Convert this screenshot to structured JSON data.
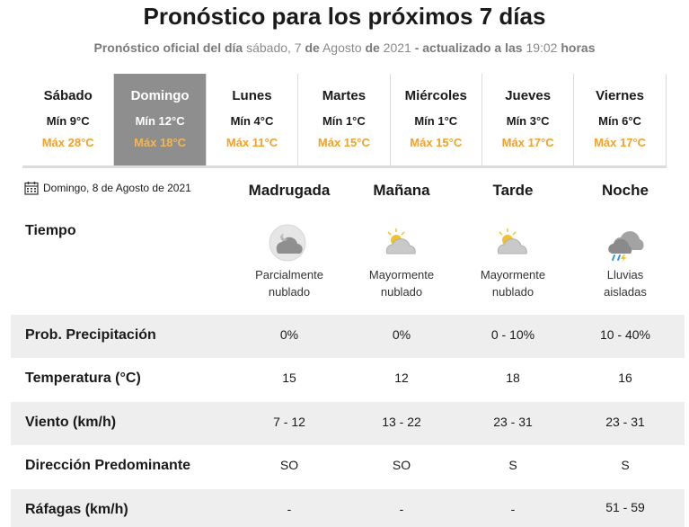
{
  "header": {
    "title": "Pronóstico para los próximos 7 días",
    "subtitle_part1": "Pronóstico oficial del día",
    "subtitle_date1": "sábado, 7",
    "subtitle_de1": "de",
    "subtitle_month": "Agosto",
    "subtitle_de2": "de",
    "subtitle_year": "2021",
    "subtitle_part2": "- actualizado a las",
    "subtitle_time": "19:02",
    "subtitle_hours": "horas"
  },
  "days": [
    {
      "name": "Sábado",
      "min": "Mín 9°C",
      "max": "Máx 28°C"
    },
    {
      "name": "Domingo",
      "min": "Mín 12°C",
      "max": "Máx 18°C"
    },
    {
      "name": "Lunes",
      "min": "Mín 4°C",
      "max": "Máx 11°C"
    },
    {
      "name": "Martes",
      "min": "Mín 1°C",
      "max": "Máx 15°C"
    },
    {
      "name": "Miércoles",
      "min": "Mín 1°C",
      "max": "Máx 15°C"
    },
    {
      "name": "Jueves",
      "min": "Mín 3°C",
      "max": "Máx 17°C"
    },
    {
      "name": "Viernes",
      "min": "Mín 6°C",
      "max": "Máx 17°C"
    }
  ],
  "active_day": "Domingo",
  "detail": {
    "date": "Domingo, 8 de Agosto de 2021",
    "calendar_icon": "calendar-icon",
    "periods": [
      "Madrugada",
      "Mañana",
      "Tarde",
      "Noche"
    ],
    "tiempo_label": "Tiempo",
    "weather": [
      {
        "line1": "Parcialmente",
        "line2": "nublado",
        "icon": "partly-cloudy-night-icon"
      },
      {
        "line1": "Mayormente",
        "line2": "nublado",
        "icon": "mostly-cloudy-day-icon"
      },
      {
        "line1": "Mayormente",
        "line2": "nublado",
        "icon": "mostly-cloudy-day-icon"
      },
      {
        "line1": "Lluvias",
        "line2": "aisladas",
        "icon": "isolated-showers-icon"
      }
    ],
    "rows": [
      {
        "label": "Prob. Precipitación",
        "values": [
          "0%",
          "0%",
          "0 - 10%",
          "10 - 40%"
        ]
      },
      {
        "label": "Temperatura (°C)",
        "values": [
          "15",
          "12",
          "18",
          "16"
        ]
      },
      {
        "label": "Viento (km/h)",
        "values": [
          "7 - 12",
          "13 - 22",
          "23 - 31",
          "23 - 31"
        ]
      },
      {
        "label": "Dirección Predominante",
        "values": [
          "SO",
          "SO",
          "S",
          "S"
        ]
      },
      {
        "label": "Ráfagas (km/h)",
        "values": [
          "-",
          "-",
          "-",
          "51 - 59"
        ]
      }
    ]
  },
  "colors": {
    "max_temp": "#f0a22a",
    "active_tab": "#8e8e8e",
    "row_shade": "#eeeeee"
  }
}
